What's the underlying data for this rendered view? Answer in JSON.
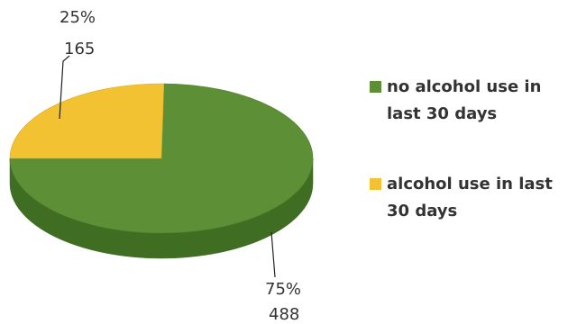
{
  "chart_data": {
    "type": "pie",
    "style": "3d",
    "slices": [
      {
        "label": "no alcohol use in last 30 days",
        "value": 488,
        "percent": "75%",
        "color": "#5c8f36",
        "side_color": "#3f6d22"
      },
      {
        "label": "alcohol use in last 30 days",
        "value": 165,
        "percent": "25%",
        "color": "#f3c232",
        "side_color": "#c9971c"
      }
    ],
    "data_labels": [
      {
        "percent": "75%",
        "value": "488"
      },
      {
        "percent": "25%",
        "value": "165"
      }
    ],
    "legend_position": "right"
  },
  "legend": [
    {
      "line1": "no alcohol use in",
      "line2": "last 30 days",
      "color": "#5c8f36"
    },
    {
      "line1": "alcohol use in last",
      "line2": "30 days",
      "color": "#f3c232"
    }
  ]
}
